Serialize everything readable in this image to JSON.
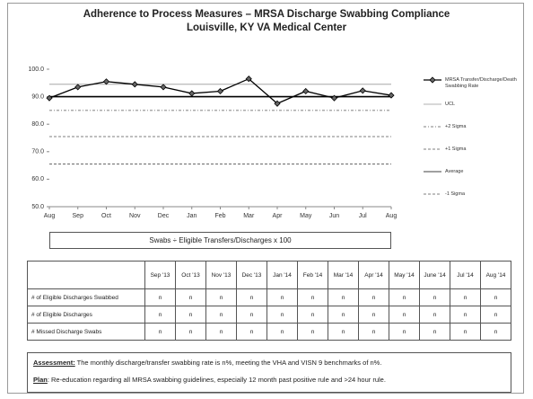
{
  "title": "Adherence to Process Measures –  MRSA Discharge Swabbing Compliance",
  "subtitle": "Louisville, KY VA Medical Center",
  "chart_data": {
    "type": "line",
    "categories": [
      "Aug",
      "Sep",
      "Oct",
      "Nov",
      "Dec",
      "Jan",
      "Feb",
      "Mar",
      "Apr",
      "May",
      "Jun",
      "Jul",
      "Aug"
    ],
    "series": [
      {
        "name": "MRSA Transfer/Discharge/Death Swabbing Rate",
        "color": "#000000",
        "values": [
          89.5,
          93.5,
          95.5,
          94.5,
          93.5,
          91.2,
          92,
          96.5,
          87.5,
          92,
          89.5,
          92.2,
          90.5
        ]
      }
    ],
    "reference_lines": [
      {
        "name": "UCL",
        "value": 94.5,
        "color": "#999999",
        "dash": "none"
      },
      {
        "name": "+2 Sigma",
        "value": 85,
        "color": "#555555",
        "dash": "3,2,1,2"
      },
      {
        "name": "+1 Sigma",
        "value": 75.5,
        "color": "#555555",
        "dash": "3,2"
      },
      {
        "name": "Average",
        "value": 90,
        "color": "#000000",
        "dash": "none"
      },
      {
        "name": "-1 Sigma",
        "value": 65.5,
        "color": "#555555",
        "dash": "3,2"
      }
    ],
    "ylim": [
      50,
      100
    ],
    "yticks": [
      {
        "value": 50,
        "label": "50.0"
      },
      {
        "value": 60,
        "label": "60.0"
      },
      {
        "value": 70,
        "label": "70.0"
      },
      {
        "value": 80,
        "label": "80.0"
      },
      {
        "value": 90,
        "label": "90.0"
      },
      {
        "value": 100,
        "label": "100.0"
      }
    ]
  },
  "formula": "Swabs ÷ Eligible Transfers/Discharges x 100",
  "table": {
    "header": [
      "",
      "Sep '13",
      "Oct '13",
      "Nov '13",
      "Dec '13",
      "Jan '14",
      "Feb '14",
      "Mar '14",
      "Apr '14",
      "May '14",
      "June '14",
      "Jul '14",
      "Aug '14"
    ],
    "rows": [
      [
        "# of Eligible Discharges Swabbed",
        "n",
        "n",
        "n",
        "n",
        "n",
        "n",
        "n",
        "n",
        "n",
        "n",
        "n",
        "n"
      ],
      [
        "# of Eligible Discharges",
        "n",
        "n",
        "n",
        "n",
        "n",
        "n",
        "n",
        "n",
        "n",
        "n",
        "n",
        "n"
      ],
      [
        "# Missed Discharge Swabs",
        "n",
        "n",
        "n",
        "n",
        "n",
        "n",
        "n",
        "n",
        "n",
        "n",
        "n",
        "n"
      ]
    ]
  },
  "assessment": {
    "label": "Assessment:",
    "text": " The monthly discharge/transfer swabbing rate is n%, meeting the VHA and  VISN 9 benchmarks of n%."
  },
  "plan": {
    "label": "Plan",
    "text": ": Re-education regarding all MRSA swabbing guidelines, especially 12 month past positive rule and >24 hour rule."
  }
}
